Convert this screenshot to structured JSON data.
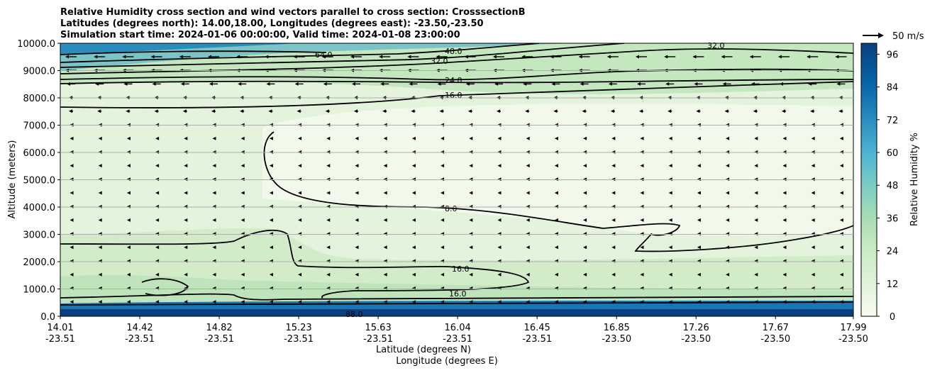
{
  "chart_data": {
    "type": "contour",
    "title": [
      "Relative Humidity cross section and wind vectors parallel to cross section: CrosssectionB",
      "Latitudes (degrees north): 14.00,18.00, Longitudes (degrees east): -23.50,-23.50",
      "Simulation start time: 2024-01-06 00:00:00, Valid time: 2024-01-08 23:00:00"
    ],
    "xlabel_lat": "Latitude (degrees N)",
    "xlabel_lon": "Longitude (degrees E)",
    "ylabel": "Altitude (meters)",
    "ylim": [
      0,
      10000
    ],
    "grid": "horizontal",
    "x_ticks": [
      {
        "lat": "14.01",
        "lon": "-23.51"
      },
      {
        "lat": "14.42",
        "lon": "-23.51"
      },
      {
        "lat": "14.82",
        "lon": "-23.51"
      },
      {
        "lat": "15.23",
        "lon": "-23.51"
      },
      {
        "lat": "15.63",
        "lon": "-23.51"
      },
      {
        "lat": "16.04",
        "lon": "-23.51"
      },
      {
        "lat": "16.45",
        "lon": "-23.51"
      },
      {
        "lat": "16.85",
        "lon": "-23.50"
      },
      {
        "lat": "17.26",
        "lon": "-23.50"
      },
      {
        "lat": "17.67",
        "lon": "-23.50"
      },
      {
        "lat": "17.99",
        "lon": "-23.50"
      }
    ],
    "y_ticks": [
      "0.0",
      "1000.0",
      "2000.0",
      "3000.0",
      "4000.0",
      "5000.0",
      "6000.0",
      "7000.0",
      "8000.0",
      "9000.0",
      "10000.0"
    ],
    "y_tick_values": [
      0,
      1000,
      2000,
      3000,
      4000,
      5000,
      6000,
      7000,
      8000,
      9000,
      10000
    ],
    "colorbar": {
      "label": "Relative Humidity %",
      "ticks": [
        "0",
        "12",
        "24",
        "36",
        "48",
        "60",
        "72",
        "84",
        "96"
      ],
      "tick_values": [
        0,
        12,
        24,
        36,
        48,
        60,
        72,
        84,
        96
      ],
      "range": [
        0,
        100
      ],
      "levels": 25,
      "colors": [
        "#f7fcf0",
        "#eaf7e4",
        "#e0f3db",
        "#d3eece",
        "#ccebc5",
        "#bce5bc",
        "#a8ddb5",
        "#94d4b9",
        "#7bccc4",
        "#63bdc9",
        "#4eb3d3",
        "#3c9fc8",
        "#2b8cbe",
        "#1a76b2",
        "#0868ac",
        "#085a9a",
        "#084081"
      ]
    },
    "contour_levels_labeled": [
      "8.0",
      "16.0",
      "16.0",
      "16.0",
      "24.0",
      "32.0",
      "32.0",
      "48.0",
      "64.0",
      "72.0",
      "32.0",
      "88.0"
    ],
    "wind_key": {
      "label": "50 m/s"
    }
  }
}
